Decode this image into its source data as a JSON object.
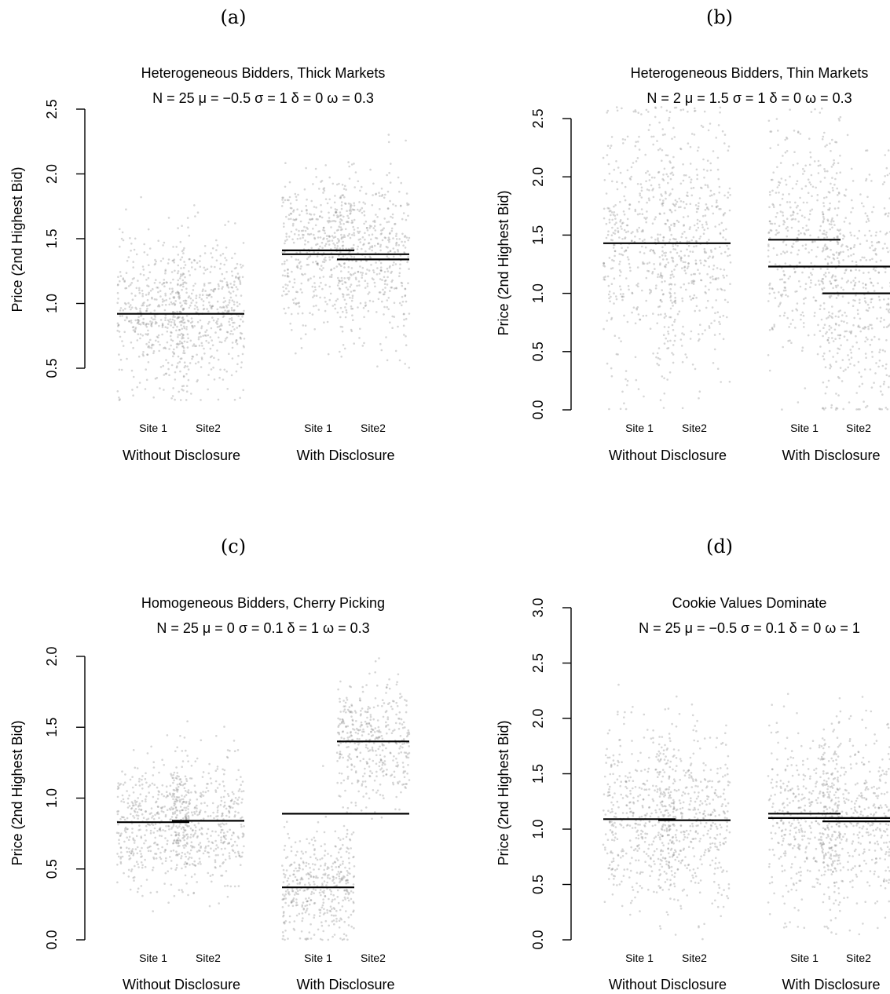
{
  "chart_data": [
    {
      "type": "scatter",
      "panel": "(a)",
      "title": "Heterogeneous Bidders, Thick Markets",
      "subtitle": "N = 25  μ = −0.5  σ = 1  δ = 0  ω = 0.3",
      "ylabel": "Price (2nd Highest Bid)",
      "ylim": [
        0.5,
        2.5
      ],
      "yticks": [
        "0.5",
        "1.0",
        "1.5",
        "2.0",
        "2.5"
      ],
      "categories": [
        "Site 1",
        "Site2",
        "Site 1",
        "Site2"
      ],
      "groups": [
        "Without Disclosure",
        "With Disclosure"
      ],
      "clouds": [
        {
          "center": 0.92,
          "spread": 0.28,
          "min": 0.25,
          "max": 1.85
        },
        {
          "center": 0.92,
          "spread": 0.28,
          "min": 0.25,
          "max": 1.9
        },
        {
          "center": 1.4,
          "spread": 0.3,
          "min": 0.6,
          "max": 2.45
        },
        {
          "center": 1.35,
          "spread": 0.33,
          "min": 0.5,
          "max": 2.35
        }
      ],
      "mean_lines": [
        {
          "from": 0,
          "to": 1,
          "y": 0.92
        },
        {
          "from": 2,
          "to": 2,
          "y": 1.41
        },
        {
          "from": 2,
          "to": 3,
          "y": 1.38
        },
        {
          "from": 3,
          "to": 3,
          "y": 1.34
        }
      ]
    },
    {
      "type": "scatter",
      "panel": "(b)",
      "title": "Heterogeneous Bidders, Thin Markets",
      "subtitle": "N = 2  μ = 1.5  σ = 1  δ = 0  ω = 0.3",
      "ylabel": "Price (2nd Highest Bid)",
      "ylim": [
        0.0,
        2.5
      ],
      "yticks": [
        "0.0",
        "0.5",
        "1.0",
        "1.5",
        "2.0",
        "2.5"
      ],
      "categories": [
        "Site 1",
        "Site2",
        "Site 1",
        "Site2"
      ],
      "groups": [
        "Without Disclosure",
        "With Disclosure"
      ],
      "clouds": [
        {
          "center": 1.43,
          "spread": 0.55,
          "min": 0.0,
          "max": 2.6
        },
        {
          "center": 1.43,
          "spread": 0.55,
          "min": 0.0,
          "max": 2.6
        },
        {
          "center": 1.46,
          "spread": 0.5,
          "min": 0.0,
          "max": 2.6
        },
        {
          "center": 1.0,
          "spread": 0.58,
          "min": 0.0,
          "max": 2.45
        }
      ],
      "mean_lines": [
        {
          "from": 0,
          "to": 1,
          "y": 1.43
        },
        {
          "from": 2,
          "to": 2,
          "y": 1.46
        },
        {
          "from": 2,
          "to": 3,
          "y": 1.23
        },
        {
          "from": 3,
          "to": 3,
          "y": 1.0
        }
      ]
    },
    {
      "type": "scatter",
      "panel": "(c)",
      "title": "Homogeneous Bidders, Cherry Picking",
      "subtitle": "N = 25  μ = 0  σ = 0.1  δ = 1  ω = 0.3",
      "ylabel": "Price (2nd Highest Bid)",
      "ylim": [
        0.0,
        2.0
      ],
      "yticks": [
        "0.0",
        "0.5",
        "1.0",
        "1.5",
        "2.0"
      ],
      "categories": [
        "Site 1",
        "Site2",
        "Site 1",
        "Site2"
      ],
      "groups": [
        "Without Disclosure",
        "With Disclosure"
      ],
      "clouds": [
        {
          "center": 0.83,
          "spread": 0.22,
          "min": 0.2,
          "max": 1.6
        },
        {
          "center": 0.84,
          "spread": 0.22,
          "min": 0.2,
          "max": 1.6
        },
        {
          "center": 0.37,
          "spread": 0.2,
          "min": 0.0,
          "max": 1.45
        },
        {
          "center": 1.4,
          "spread": 0.22,
          "min": 0.85,
          "max": 2.05
        }
      ],
      "mean_lines": [
        {
          "from": 0,
          "to": 0,
          "y": 0.83
        },
        {
          "from": 1,
          "to": 1,
          "y": 0.84
        },
        {
          "from": 2,
          "to": 3,
          "y": 0.89
        },
        {
          "from": 2,
          "to": 2,
          "y": 0.37
        },
        {
          "from": 3,
          "to": 3,
          "y": 1.4
        }
      ]
    },
    {
      "type": "scatter",
      "panel": "(d)",
      "title": "Cookie Values Dominate",
      "subtitle": "N = 25  μ = −0.5  σ = 0.1  δ = 0  ω = 1",
      "ylabel": "Price (2nd Highest Bid)",
      "ylim": [
        0.0,
        3.0
      ],
      "yticks": [
        "0.0",
        "0.5",
        "1.0",
        "1.5",
        "2.0",
        "2.5",
        "3.0"
      ],
      "categories": [
        "Site 1",
        "Site2",
        "Site 1",
        "Site2"
      ],
      "groups": [
        "Without Disclosure",
        "With Disclosure"
      ],
      "clouds": [
        {
          "center": 1.09,
          "spread": 0.4,
          "min": 0.05,
          "max": 2.45
        },
        {
          "center": 1.08,
          "spread": 0.4,
          "min": 0.0,
          "max": 2.35
        },
        {
          "center": 1.13,
          "spread": 0.4,
          "min": 0.1,
          "max": 2.5
        },
        {
          "center": 1.07,
          "spread": 0.4,
          "min": 0.05,
          "max": 2.45
        }
      ],
      "mean_lines": [
        {
          "from": 0,
          "to": 0,
          "y": 1.09
        },
        {
          "from": 1,
          "to": 1,
          "y": 1.08
        },
        {
          "from": 2,
          "to": 2,
          "y": 1.14
        },
        {
          "from": 2,
          "to": 3,
          "y": 1.1
        },
        {
          "from": 3,
          "to": 3,
          "y": 1.07
        }
      ]
    }
  ]
}
